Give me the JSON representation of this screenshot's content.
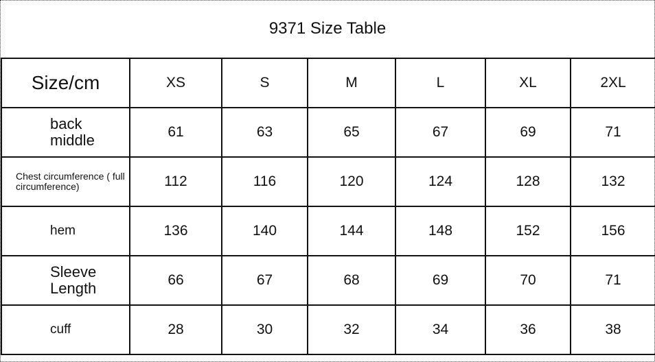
{
  "title": "9371 Size Table",
  "table": {
    "header_label": "Size/cm",
    "sizes": [
      "XS",
      "S",
      "M",
      "L",
      "XL",
      "2XL"
    ],
    "rows": [
      {
        "label": "back middle",
        "values": [
          "61",
          "63",
          "65",
          "67",
          "69",
          "71"
        ]
      },
      {
        "label": "Chest circumference ( full circumference)",
        "values": [
          "112",
          "116",
          "120",
          "124",
          "128",
          "132"
        ]
      },
      {
        "label": "hem",
        "values": [
          "136",
          "140",
          "144",
          "148",
          "152",
          "156"
        ]
      },
      {
        "label": "Sleeve Length",
        "values": [
          "66",
          "67",
          "68",
          "69",
          "70",
          "71"
        ]
      },
      {
        "label": "cuff",
        "values": [
          "28",
          "30",
          "32",
          "34",
          "36",
          "38"
        ]
      }
    ]
  }
}
